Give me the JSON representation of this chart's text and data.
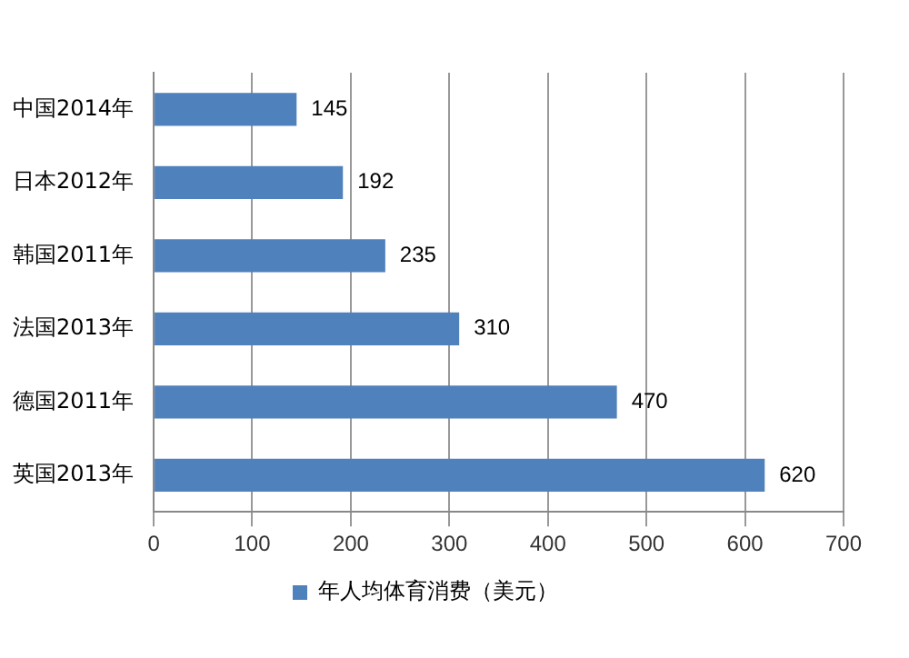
{
  "chart_data": {
    "type": "bar",
    "orientation": "horizontal",
    "categories": [
      "中国2014年",
      "日本2012年",
      "韩国2011年",
      "法国2013年",
      "德国2011年",
      "英国2013年"
    ],
    "series": [
      {
        "name": "年人均体育消费（美元）",
        "color": "#4f81bd",
        "values": [
          145,
          192,
          235,
          310,
          470,
          620
        ]
      }
    ],
    "xlim": [
      0,
      700
    ],
    "xticks": [
      0,
      100,
      200,
      300,
      400,
      500,
      600,
      700
    ],
    "grid": "x",
    "legend": "bottom",
    "data_labels": true
  }
}
